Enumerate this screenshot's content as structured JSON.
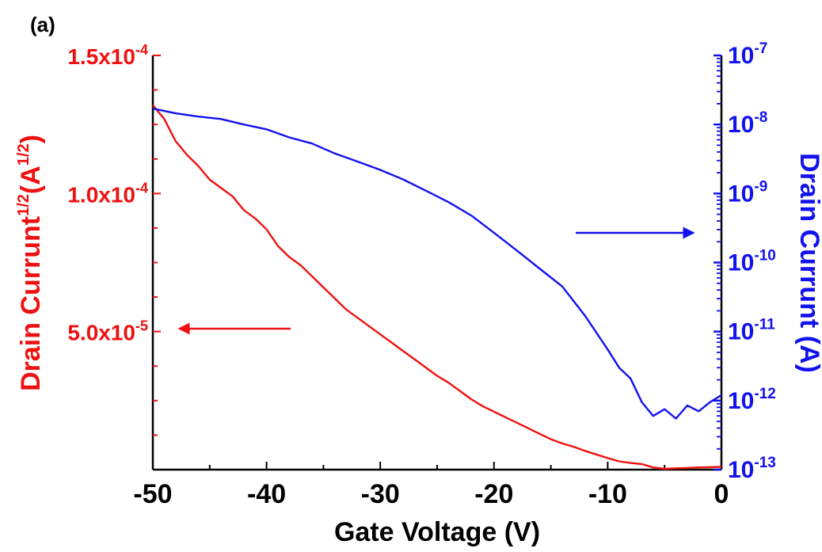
{
  "panel_label": "(a)",
  "colors": {
    "left": "#ee1111",
    "right": "#1212ee",
    "axis": "#000000"
  },
  "chart_data": {
    "type": "line",
    "xlabel": "Gate Voltage (V)",
    "xlim": [
      -50,
      0
    ],
    "x_ticks": [
      -50,
      -40,
      -30,
      -20,
      -10,
      0
    ],
    "x_tick_labels": [
      "-50",
      "-40",
      "-30",
      "-20",
      "-10",
      "0"
    ],
    "left_axis": {
      "label_text": "Drain Currunt",
      "label_sup": "1/2",
      "label_unit_open": "(A",
      "label_unit_sup": "1/2",
      "label_unit_close": ")",
      "lim": [
        0,
        0.00015
      ],
      "ticks": [
        {
          "value": 0.00015,
          "mantissa": "1.5x10",
          "exp": "-4"
        },
        {
          "value": 0.0001,
          "mantissa": "1.0x10",
          "exp": "-4"
        },
        {
          "value": 5e-05,
          "mantissa": "5.0x10",
          "exp": "-5"
        }
      ]
    },
    "right_axis": {
      "label": "Drain Currunt (A)",
      "scale": "log",
      "lim": [
        1e-13,
        1e-07
      ],
      "ticks": [
        {
          "value": 1e-07,
          "base": "10",
          "exp": "-7"
        },
        {
          "value": 1e-08,
          "base": "10",
          "exp": "-8"
        },
        {
          "value": 1e-09,
          "base": "10",
          "exp": "-9"
        },
        {
          "value": 1e-10,
          "base": "10",
          "exp": "-10"
        },
        {
          "value": 1e-11,
          "base": "10",
          "exp": "-11"
        },
        {
          "value": 1e-12,
          "base": "10",
          "exp": "-12"
        },
        {
          "value": 1e-13,
          "base": "10",
          "exp": "-13"
        }
      ]
    },
    "series": [
      {
        "axis": "left",
        "color": "#ee1111",
        "x": [
          -50,
          -49,
          -48,
          -47,
          -46,
          -45,
          -44,
          -43,
          -42,
          -41,
          -40,
          -39,
          -38,
          -37,
          -36,
          -35,
          -34,
          -33,
          -32,
          -31,
          -30,
          -29,
          -28,
          -27,
          -26,
          -25,
          -24,
          -23,
          -22,
          -21,
          -20,
          -19,
          -18,
          -17,
          -16,
          -15,
          -14,
          -13,
          -12,
          -11,
          -10,
          -9,
          -8,
          -7,
          -6,
          -5,
          -4,
          -3,
          -2,
          -1,
          0
        ],
        "y": [
          0.000132,
          0.000127,
          0.000119,
          0.000114,
          0.00011,
          0.000105,
          0.000102,
          9.9e-05,
          9.4e-05,
          9.1e-05,
          8.7e-05,
          8.1e-05,
          7.7e-05,
          7.4e-05,
          7e-05,
          6.6e-05,
          6.2e-05,
          5.8e-05,
          5.5e-05,
          5.2e-05,
          4.9e-05,
          4.6e-05,
          4.3e-05,
          4e-05,
          3.7e-05,
          3.4e-05,
          3.15e-05,
          2.85e-05,
          2.55e-05,
          2.3e-05,
          2.1e-05,
          1.9e-05,
          1.7e-05,
          1.5e-05,
          1.3e-05,
          1.1e-05,
          9.5e-06,
          8.3e-06,
          6.8e-06,
          5.5e-06,
          4.2e-06,
          3e-06,
          2.4e-06,
          2e-06,
          8e-07,
          3e-07,
          5e-07,
          6e-07,
          8e-07,
          9e-07,
          1e-06
        ]
      },
      {
        "axis": "right",
        "color": "#1212ee",
        "x": [
          -50,
          -48,
          -46,
          -44,
          -42,
          -40,
          -38,
          -36,
          -34,
          -32,
          -30,
          -28,
          -26,
          -24,
          -22,
          -20,
          -18,
          -16,
          -14,
          -12,
          -10,
          -9,
          -8,
          -7,
          -6,
          -5,
          -4,
          -3,
          -2,
          -1,
          0
        ],
        "y": [
          1.7e-08,
          1.45e-08,
          1.3e-08,
          1.2e-08,
          1e-08,
          8.5e-09,
          6.5e-09,
          5.3e-09,
          3.8e-09,
          2.9e-09,
          2.2e-09,
          1.6e-09,
          1.1e-09,
          7.5e-10,
          4.8e-10,
          2.7e-10,
          1.5e-10,
          8.2e-11,
          4.5e-11,
          1.7e-11,
          5.5e-12,
          3e-12,
          2.1e-12,
          9.5e-13,
          6e-13,
          7.5e-13,
          5.5e-13,
          8.5e-13,
          7e-13,
          9.5e-13,
          1.2e-12
        ]
      }
    ],
    "annotations": [
      {
        "type": "arrow",
        "direction": "left",
        "color": "#ee1111",
        "points_to": "left axis"
      },
      {
        "type": "arrow",
        "direction": "right",
        "color": "#1212ee",
        "points_to": "right axis"
      }
    ]
  }
}
